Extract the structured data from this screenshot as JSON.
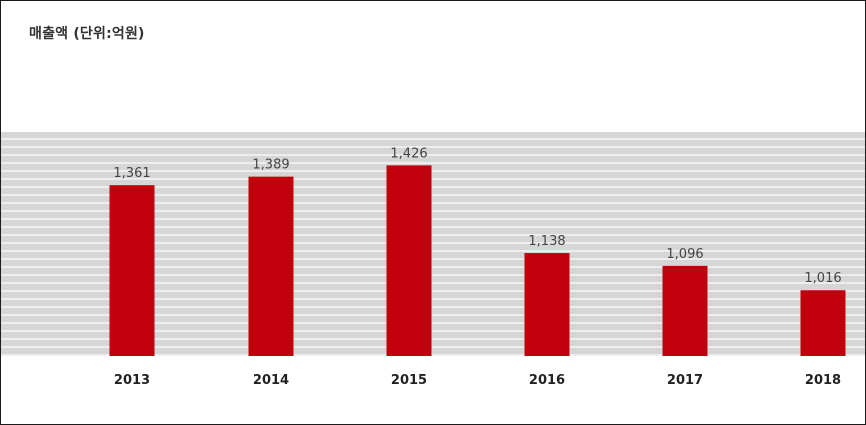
{
  "title": "매출액 (단위:억원)",
  "colors": {
    "bar": "#c0000d",
    "plot_bg": "#d6d6d6",
    "stripe": "#eeeeee"
  },
  "chart_data": {
    "type": "bar",
    "title": "매출액 (단위:억원)",
    "categories": [
      "2013",
      "2014",
      "2015",
      "2016",
      "2017",
      "2018"
    ],
    "values": [
      1361,
      1389,
      1426,
      1138,
      1096,
      1016
    ],
    "value_labels": [
      "1,361",
      "1,389",
      "1,426",
      "1,138",
      "1,096",
      "1,016"
    ],
    "xlabel": "",
    "ylabel": "",
    "grid": true,
    "legend": "none"
  }
}
